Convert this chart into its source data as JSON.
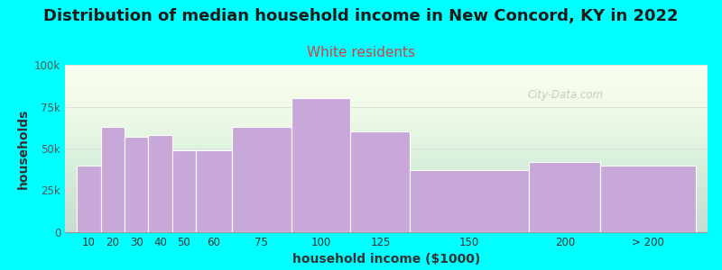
{
  "title": "Distribution of median household income in New Concord, KY in 2022",
  "subtitle": "White residents",
  "xlabel": "household income ($1000)",
  "ylabel": "households",
  "background_color": "#00FFFF",
  "bar_color": "#c8a8d8",
  "bar_edge_color": "#ffffff",
  "title_fontsize": 13,
  "subtitle_fontsize": 11,
  "subtitle_color": "#cc4444",
  "xlabel_fontsize": 10,
  "ylabel_fontsize": 10,
  "categories": [
    "10",
    "20",
    "30",
    "40",
    "50",
    "60",
    "75",
    "100",
    "125",
    "150",
    "200",
    "> 200"
  ],
  "values": [
    40000,
    63000,
    57000,
    58000,
    49000,
    49000,
    63000,
    80000,
    60000,
    37000,
    42000,
    40000
  ],
  "ylim": [
    0,
    100000
  ],
  "yticks": [
    0,
    25000,
    50000,
    75000,
    100000
  ],
  "bar_lefts": [
    10,
    20,
    30,
    40,
    50,
    60,
    75,
    100,
    125,
    150,
    200,
    230
  ],
  "bar_rights": [
    20,
    30,
    40,
    50,
    60,
    75,
    100,
    125,
    150,
    200,
    230,
    270
  ],
  "tick_positions": [
    15,
    25,
    35,
    45,
    55,
    67.5,
    87.5,
    112.5,
    137.5,
    175,
    215,
    250
  ],
  "watermark": "City-Data.com"
}
